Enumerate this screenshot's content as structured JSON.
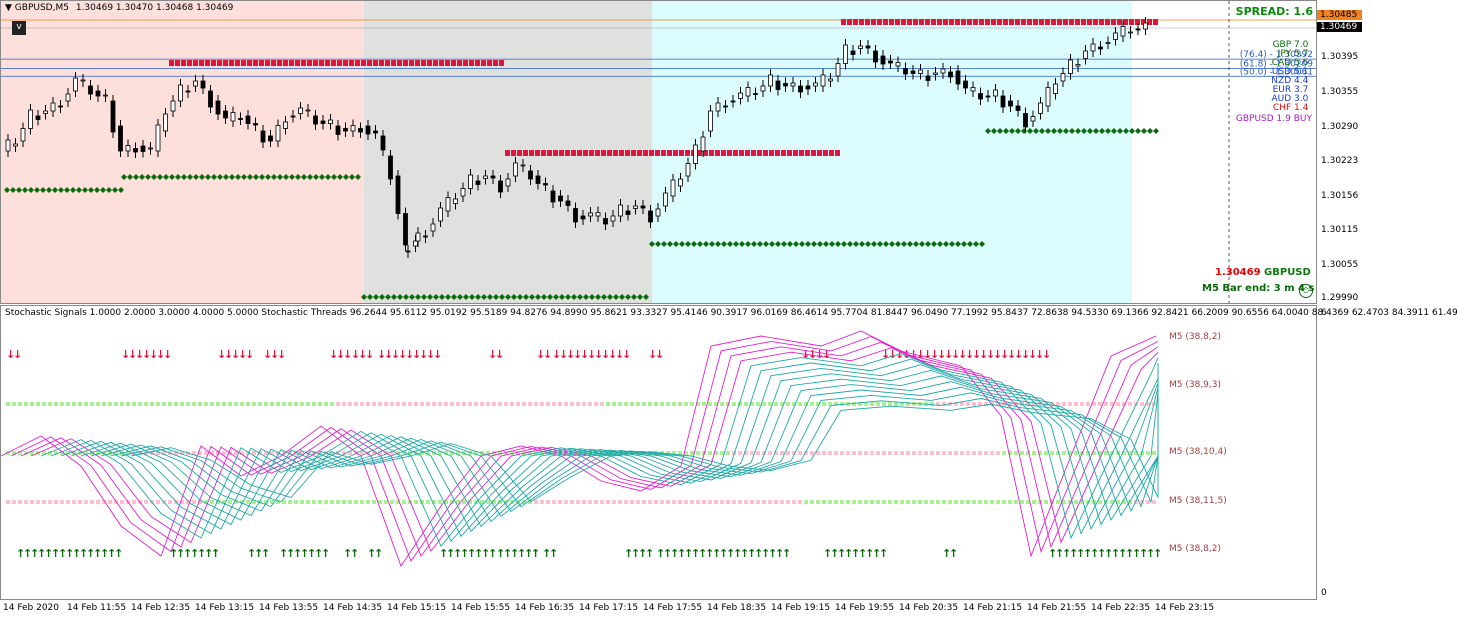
{
  "header": {
    "symbol_tf": "GBPUSD,M5",
    "ohlc": "1.30469 1.30470 1.30468 1.30469",
    "spread": "SPREAD: 1.6",
    "collapse": "v"
  },
  "price_axis": {
    "current_top": "1.30485",
    "current": "1.30469",
    "ticks": [
      "1.30395",
      "1.30355",
      "1.30290",
      "1.30223",
      "1.30156",
      "1.30115",
      "1.30055",
      "1.29990"
    ]
  },
  "strength": [
    {
      "cur": "GBP",
      "val": "7.0",
      "color": "#0a6b0a"
    },
    {
      "cur": "JPY",
      "val": "5.7",
      "color": "#0a6b0a"
    },
    {
      "cur": "CAD",
      "val": "5.6",
      "color": "#0a6b0a"
    },
    {
      "cur": "USD",
      "val": "5.1",
      "color": "#1a3cc8"
    },
    {
      "cur": "NZD",
      "val": "4.4",
      "color": "#1a3cc8"
    },
    {
      "cur": "EUR",
      "val": "3.7",
      "color": "#1a3cc8"
    },
    {
      "cur": "AUD",
      "val": "3.0",
      "color": "#1a3cc8"
    },
    {
      "cur": "CHF",
      "val": "1.4",
      "color": "#d01010"
    }
  ],
  "signal": "GBPUSD 1.9 BUY",
  "fib": [
    {
      "label": "(76.4) - 1.30392",
      "price": 1.30392
    },
    {
      "label": "(61.8) - 1.30209",
      "price": 1.30209
    },
    {
      "label": "(50.0) - 1.30061",
      "price": 1.30061
    }
  ],
  "bid_label": {
    "price": "1.30469",
    "symbol": "GBPUSD"
  },
  "bar_end": "M5 Bar end: 3 m 4 s",
  "stoch_header": "Stochastic Signals 1.0000 2.0000 3.0000 4.0000 5.0000  Stochastic Threads 96.2644 95.6112 95.0192 95.5189 94.8276 94.8990 95.8621 93.3327 95.4146 90.3917 96.0169 86.4614 95.7704 81.8447 96.0490 77.1992 95.8437 72.8638 94.5330 69.1366 92.8421 66.2009 90.6556 64.0040 88.4369 62.4703 84.3911 61.49",
  "stoch_axis": {
    "top": "6",
    "bottom": "0"
  },
  "stoch_rows": [
    "M5 (38,8,2)",
    "M5 (38,9,3)",
    "M5 (38,10,4)",
    "M5 (38,11,5)",
    "M5 (38,8,2)"
  ],
  "time_axis": [
    "14 Feb 2020",
    "14 Feb 11:55",
    "14 Feb 12:35",
    "14 Feb 13:15",
    "14 Feb 13:55",
    "14 Feb 14:35",
    "14 Feb 15:15",
    "14 Feb 15:55",
    "14 Feb 16:35",
    "14 Feb 17:15",
    "14 Feb 17:55",
    "14 Feb 18:35",
    "14 Feb 19:15",
    "14 Feb 19:55",
    "14 Feb 20:35",
    "14 Feb 21:15",
    "14 Feb 21:55",
    "14 Feb 22:35",
    "14 Feb 23:15"
  ],
  "colors": {
    "session_pink": "#fde0dc",
    "session_gray": "#dfe1df",
    "session_cyan": "#dcfbfd",
    "resistance": "#e0143c",
    "support": "#0a6b0a",
    "fib_line": "#2a5cc8",
    "stoch_magenta": "#e020d0",
    "stoch_teal": "#20a8a8"
  }
}
